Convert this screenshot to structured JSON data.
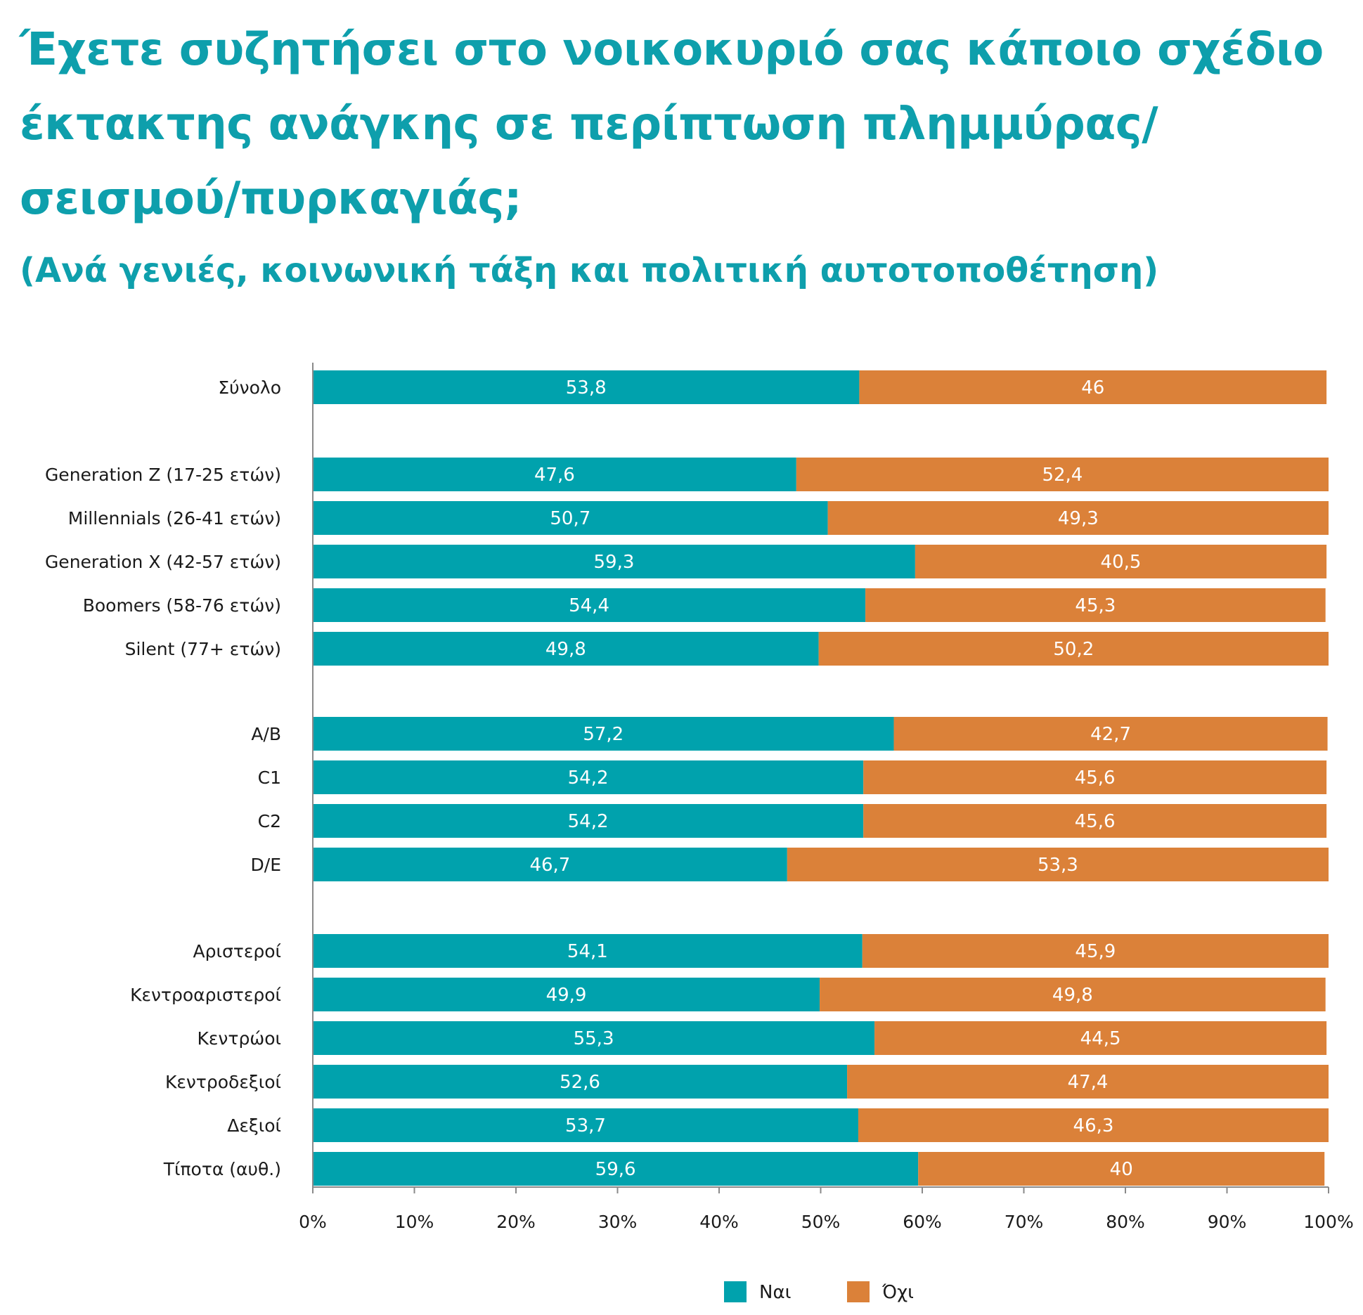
{
  "title": "Έχετε συζητήσει στο νοικοκυριό σας κάποιο σχέδιο έκτακτης ανάγκης σε περίπτωση πλημμύρας/σεισμού/πυρκαγιάς;",
  "subtitle": "(Ανά γενιές, κοινωνική τάξη και πολιτική αυτοτοποθέτηση)",
  "chart_data": {
    "type": "bar",
    "orientation": "horizontal",
    "stacked": true,
    "categories": [
      "Σύνολο",
      "Generation Z (17-25 ετών)",
      "Millennials (26-41 ετών)",
      "Generation X (42-57 ετών)",
      "Boomers (58-76 ετών)",
      "Silent (77+ ετών)",
      "A/B",
      "C1",
      "C2",
      "D/E",
      "Αριστεροί",
      "Κεντροαριστεροί",
      "Κεντρώοι",
      "Κεντροδεξιοί",
      "Δεξιοί",
      "Τίποτα (αυθ.)"
    ],
    "groups": [
      [
        0
      ],
      [
        1,
        2,
        3,
        4,
        5
      ],
      [
        6,
        7,
        8,
        9
      ],
      [
        10,
        11,
        12,
        13,
        14,
        15
      ]
    ],
    "series": [
      {
        "name": "Ναι",
        "color": "#00a2ad",
        "values": [
          53.8,
          47.6,
          50.7,
          59.3,
          54.4,
          49.8,
          57.2,
          54.2,
          54.2,
          46.7,
          54.1,
          49.9,
          55.3,
          52.6,
          53.7,
          59.6
        ],
        "labels": [
          "53,8",
          "47,6",
          "50,7",
          "59,3",
          "54,4",
          "49,8",
          "57,2",
          "54,2",
          "54,2",
          "46,7",
          "54,1",
          "49,9",
          "55,3",
          "52,6",
          "53,7",
          "59,6"
        ]
      },
      {
        "name": "Όχι",
        "color": "#db8139",
        "values": [
          46,
          52.4,
          49.3,
          40.5,
          45.3,
          50.2,
          42.7,
          45.6,
          45.6,
          53.3,
          45.9,
          49.8,
          44.5,
          47.4,
          46.3,
          40
        ],
        "labels": [
          "46",
          "52,4",
          "49,3",
          "40,5",
          "45,3",
          "50,2",
          "42,7",
          "45,6",
          "45,6",
          "53,3",
          "45,9",
          "49,8",
          "44,5",
          "47,4",
          "46,3",
          "40"
        ]
      }
    ],
    "xlim": [
      0,
      100
    ],
    "xticks": [
      "0%",
      "10%",
      "20%",
      "30%",
      "40%",
      "50%",
      "60%",
      "70%",
      "80%",
      "90%",
      "100%"
    ],
    "grid": false,
    "legend": "bottom-center"
  }
}
